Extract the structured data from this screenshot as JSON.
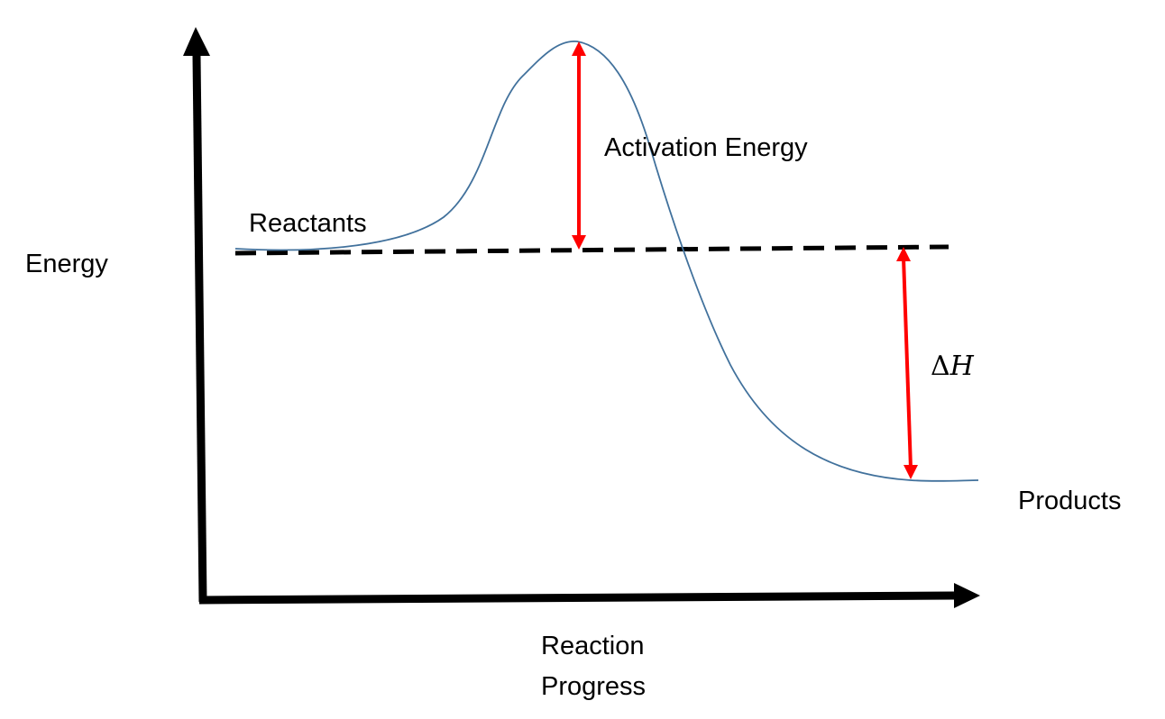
{
  "labels": {
    "y_axis": "Energy",
    "x_axis_line1": "Reaction",
    "x_axis_line2": "Progress",
    "reactants": "Reactants",
    "products": "Products",
    "activation_energy": "Activation Energy",
    "delta_h_symbol": "Δ",
    "delta_h_variable": "H"
  },
  "colors": {
    "axes": "#000000",
    "curve": "#41719C",
    "dashed_line": "#000000",
    "arrows": "#FF0000",
    "text": "#000000"
  }
}
